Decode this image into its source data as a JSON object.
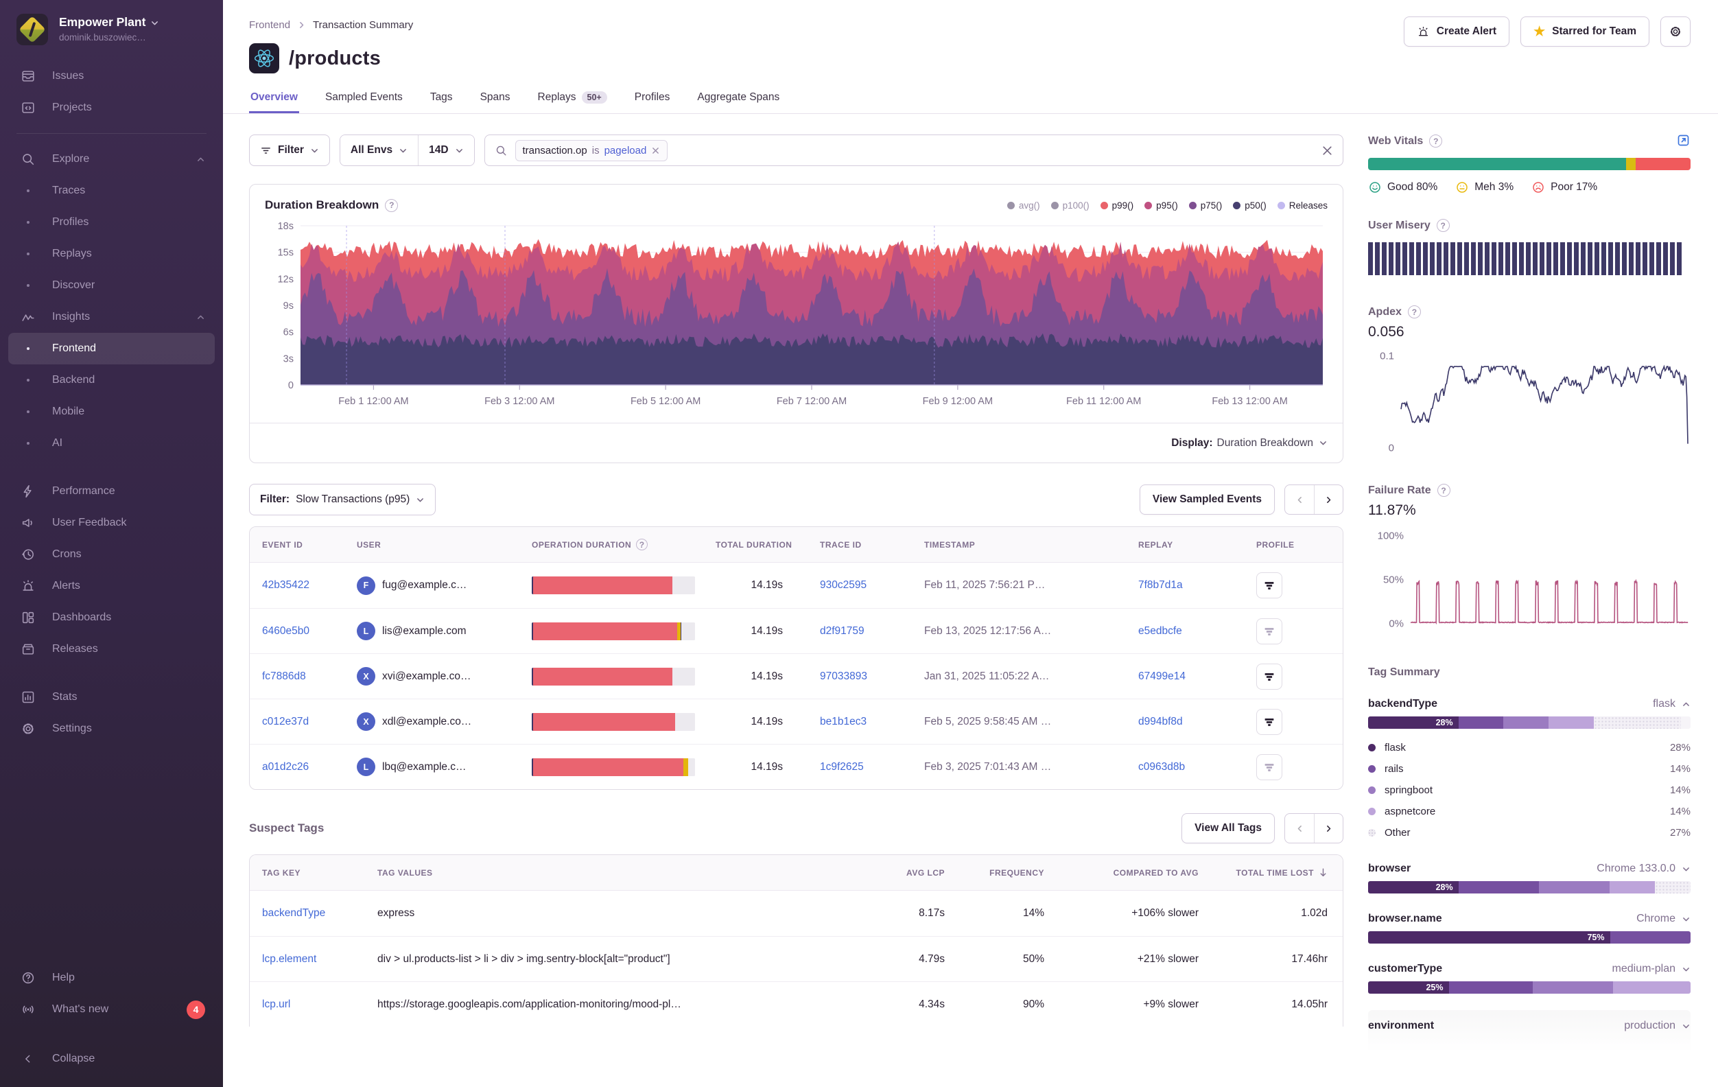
{
  "sidebar": {
    "org_name": "Empower Plant",
    "org_user": "dominik.buszowiec…",
    "sections": [
      [
        {
          "icon": "issues",
          "label": "Issues"
        },
        {
          "icon": "projects",
          "label": "Projects"
        }
      ],
      [
        {
          "icon": "search",
          "label": "Explore",
          "chevron": "up"
        },
        {
          "bullet": true,
          "label": "Traces"
        },
        {
          "bullet": true,
          "label": "Profiles"
        },
        {
          "bullet": true,
          "label": "Replays"
        },
        {
          "bullet": true,
          "label": "Discover"
        },
        {
          "icon": "insights",
          "label": "Insights",
          "chevron": "up"
        },
        {
          "bullet": true,
          "label": "Frontend",
          "active": true
        },
        {
          "bullet": true,
          "label": "Backend"
        },
        {
          "bullet": true,
          "label": "Mobile"
        },
        {
          "bullet": true,
          "label": "AI"
        }
      ],
      [
        {
          "icon": "performance",
          "label": "Performance"
        },
        {
          "icon": "feedback",
          "label": "User Feedback"
        },
        {
          "icon": "crons",
          "label": "Crons"
        },
        {
          "icon": "alerts",
          "label": "Alerts"
        },
        {
          "icon": "dashboards",
          "label": "Dashboards"
        },
        {
          "icon": "releases",
          "label": "Releases"
        }
      ],
      [
        {
          "icon": "stats",
          "label": "Stats"
        },
        {
          "icon": "settings",
          "label": "Settings"
        }
      ]
    ],
    "footer_items": [
      {
        "icon": "help",
        "label": "Help"
      },
      {
        "icon": "broadcast",
        "label": "What's new",
        "badge": "4"
      }
    ],
    "collapse_label": "Collapse"
  },
  "header": {
    "breadcrumb": [
      "Frontend",
      "Transaction Summary"
    ],
    "title": "/products",
    "actions": {
      "create_alert": "Create Alert",
      "starred": "Starred for Team"
    }
  },
  "tabs": [
    {
      "label": "Overview",
      "active": true
    },
    {
      "label": "Sampled Events"
    },
    {
      "label": "Tags"
    },
    {
      "label": "Spans"
    },
    {
      "label": "Replays",
      "badge": "50+"
    },
    {
      "label": "Profiles"
    },
    {
      "label": "Aggregate Spans"
    }
  ],
  "filter_bar": {
    "filter_label": "Filter",
    "env_label": "All Envs",
    "period_label": "14D",
    "search_token": {
      "key": "transaction.op",
      "op": "is",
      "value": "pageload"
    }
  },
  "duration_panel": {
    "title": "Duration Breakdown",
    "display_label": "Display:",
    "display_value": "Duration Breakdown"
  },
  "chart_data": [
    {
      "id": "duration_breakdown",
      "type": "area",
      "title": "Duration Breakdown",
      "ylim": [
        0,
        18
      ],
      "y_ticks": [
        {
          "v": 18,
          "label": "18s"
        },
        {
          "v": 15,
          "label": "15s"
        },
        {
          "v": 12,
          "label": "12s"
        },
        {
          "v": 9,
          "label": "9s"
        },
        {
          "v": 6,
          "label": "6s"
        },
        {
          "v": 3,
          "label": "3s"
        },
        {
          "v": 0,
          "label": "0"
        }
      ],
      "x_ticks": [
        {
          "day": 1,
          "label": "Feb 1 12:00 AM"
        },
        {
          "day": 3,
          "label": "Feb 3 12:00 AM"
        },
        {
          "day": 5,
          "label": "Feb 5 12:00 AM"
        },
        {
          "day": 7,
          "label": "Feb 7 12:00 AM"
        },
        {
          "day": 9,
          "label": "Feb 9 12:00 AM"
        },
        {
          "day": 11,
          "label": "Feb 11 12:00 AM"
        },
        {
          "day": 13,
          "label": "Feb 13 12:00 AM"
        }
      ],
      "x_days": 14,
      "legend": [
        {
          "label": "avg()",
          "color": "#9b93a7",
          "active": false
        },
        {
          "label": "p100()",
          "color": "#9b93a7",
          "active": false
        },
        {
          "label": "p99()",
          "color": "#e9636a",
          "active": true
        },
        {
          "label": "p95()",
          "color": "#c05181",
          "active": true
        },
        {
          "label": "p75()",
          "color": "#7e4f91",
          "active": true
        },
        {
          "label": "p50()",
          "color": "#474070",
          "active": true
        },
        {
          "label": "Releases",
          "color": "#c2b9f0",
          "active": true
        }
      ],
      "series": [
        {
          "name": "p99()",
          "color": "#e9636a",
          "base": 15.1,
          "noise": 0.85,
          "spike": 0.6,
          "seed": 11
        },
        {
          "name": "p95()",
          "color": "#c05181",
          "base": 12.6,
          "noise": 0.95,
          "spike": 2.8,
          "seed": 22
        },
        {
          "name": "p75()",
          "color": "#7e4f91",
          "base": 7.6,
          "noise": 1.05,
          "spike": 4.7,
          "seed": 33
        },
        {
          "name": "p50()",
          "color": "#474070",
          "base": 4.85,
          "noise": 0.65,
          "spike": 0.4,
          "seed": 44
        }
      ],
      "cycles": 14,
      "releases_x": [
        0.045,
        0.2,
        0.62
      ]
    },
    {
      "id": "apdex",
      "type": "line",
      "label": "Apdex",
      "value": "0.056",
      "ylim": [
        0,
        0.1
      ],
      "y_ticks": [
        {
          "v": 0.1,
          "label": "0.1"
        },
        {
          "v": 0,
          "label": "0"
        }
      ],
      "color": "#3a3768",
      "base": 0.048,
      "noise": 0.013,
      "seed": 7
    },
    {
      "id": "failure_rate",
      "type": "line",
      "label": "Failure Rate",
      "value": "11.87%",
      "ylim": [
        0,
        1
      ],
      "y_ticks": [
        {
          "v": 1,
          "label": "100%"
        },
        {
          "v": 0.5,
          "label": "50%"
        },
        {
          "v": 0,
          "label": "0%"
        }
      ],
      "color": "#b5537f",
      "pulses": 14,
      "pulse_height": 0.46,
      "seed": 19
    },
    {
      "id": "user_misery",
      "type": "barcode",
      "label": "User Misery",
      "bars": 46,
      "color": "#3e3966"
    },
    {
      "id": "web_vitals",
      "type": "stacked_bar",
      "label": "Web Vitals",
      "segments": [
        {
          "label": "Good",
          "pct": 80,
          "color": "#2ba185"
        },
        {
          "label": "Meh",
          "pct": 3,
          "color": "#d8bc13"
        },
        {
          "label": "Poor",
          "pct": 17,
          "color": "#f05a5c"
        }
      ]
    }
  ],
  "events_section": {
    "filter_label": "Filter:",
    "filter_value": "Slow Transactions (p95)",
    "view_button": "View Sampled Events",
    "columns": [
      "Event ID",
      "User",
      "Operation Duration",
      "Total Duration",
      "Trace ID",
      "Timestamp",
      "Replay",
      "Profile"
    ],
    "rows": [
      {
        "event_id": "42b35422",
        "user_initial": "F",
        "user": "fug@example.c…",
        "op_segments": [
          {
            "c": "#3e3466",
            "w": 1
          },
          {
            "c": "#ea6470",
            "w": 85
          },
          {
            "c": "#eceaef",
            "w": 14
          }
        ],
        "total": "14.19s",
        "trace": "930c2595",
        "timestamp": "Feb 11, 2025 7:56:21 P…",
        "replay": "7f8b7d1a",
        "profile_active": true
      },
      {
        "event_id": "6460e5b0",
        "user_initial": "L",
        "user": "lis@example.com",
        "op_segments": [
          {
            "c": "#3e3466",
            "w": 1
          },
          {
            "c": "#ea6470",
            "w": 88
          },
          {
            "c": "#e3b50c",
            "w": 2
          },
          {
            "c": "#3e3466",
            "w": 0.8
          },
          {
            "c": "#eceaef",
            "w": 8.2
          }
        ],
        "total": "14.19s",
        "trace": "d2f91759",
        "timestamp": "Feb 13, 2025 12:17:56 A…",
        "replay": "e5edbcfe",
        "profile_active": false
      },
      {
        "event_id": "fc7886d8",
        "user_initial": "X",
        "user": "xvi@example.co…",
        "op_segments": [
          {
            "c": "#3e3466",
            "w": 1
          },
          {
            "c": "#ea6470",
            "w": 85
          },
          {
            "c": "#eceaef",
            "w": 14
          }
        ],
        "total": "14.19s",
        "trace": "97033893",
        "timestamp": "Jan 31, 2025 11:05:22 A…",
        "replay": "67499e14",
        "profile_active": true
      },
      {
        "event_id": "c012e37d",
        "user_initial": "X",
        "user": "xdl@example.co…",
        "op_segments": [
          {
            "c": "#3e3466",
            "w": 1
          },
          {
            "c": "#ea6470",
            "w": 87
          },
          {
            "c": "#eceaef",
            "w": 12
          }
        ],
        "total": "14.19s",
        "trace": "be1b1ec3",
        "timestamp": "Feb 5, 2025 9:58:45 AM …",
        "replay": "d994bf8d",
        "profile_active": true
      },
      {
        "event_id": "a01d2c26",
        "user_initial": "L",
        "user": "lbq@example.c…",
        "op_segments": [
          {
            "c": "#3e3466",
            "w": 1
          },
          {
            "c": "#ea6470",
            "w": 92
          },
          {
            "c": "#e3b50c",
            "w": 3
          },
          {
            "c": "#eceaef",
            "w": 4
          }
        ],
        "total": "14.19s",
        "trace": "1c9f2625",
        "timestamp": "Feb 3, 2025 7:01:43 AM …",
        "replay": "c0963d8b",
        "profile_active": false
      }
    ]
  },
  "suspect_tags": {
    "title": "Suspect Tags",
    "view_button": "View All Tags",
    "columns": [
      "Tag Key",
      "Tag Values",
      "Avg LCP",
      "Frequency",
      "Compared To Avg",
      "Total Time Lost"
    ],
    "sorted_col": "Total Time Lost",
    "rows": [
      {
        "key": "backendType",
        "values": "express",
        "avg_lcp": "8.17s",
        "freq": "14%",
        "compared": "+106% slower",
        "lost": "1.02d"
      },
      {
        "key": "lcp.element",
        "values": "div > ul.products-list > li > div > img.sentry-block[alt=\"product\"]",
        "avg_lcp": "4.79s",
        "freq": "50%",
        "compared": "+21% slower",
        "lost": "17.46hr"
      },
      {
        "key": "lcp.url",
        "values": "https://storage.googleapis.com/application-monitoring/mood-pl…",
        "avg_lcp": "4.34s",
        "freq": "90%",
        "compared": "+9% slower",
        "lost": "14.05hr"
      }
    ]
  },
  "right_panel": {
    "web_vitals_title": "Web Vitals",
    "web_vitals_legend": [
      {
        "face": "good",
        "label": "Good 80%",
        "color": "#2ba185"
      },
      {
        "face": "meh",
        "label": "Meh 3%",
        "color": "#e9b90d"
      },
      {
        "face": "poor",
        "label": "Poor 17%",
        "color": "#f05a5c"
      }
    ],
    "user_misery_title": "User Misery",
    "apdex_title": "Apdex",
    "apdex_value": "0.056",
    "failure_title": "Failure Rate",
    "failure_value": "11.87%",
    "tag_summary_title": "Tag Summary",
    "tag_sections": [
      {
        "key": "backendType",
        "selected": "flask",
        "expanded": true,
        "bar": [
          {
            "pct": 28,
            "color": "#4d2a67",
            "label": "28%"
          },
          {
            "pct": 14,
            "color": "#7650a0"
          },
          {
            "pct": 14,
            "color": "#9b7bc1"
          },
          {
            "pct": 14,
            "color": "#bda4da"
          },
          {
            "pct": 27,
            "other": true
          }
        ],
        "legend": [
          {
            "label": "flask",
            "pct": "28%",
            "color": "#4d2a67"
          },
          {
            "label": "rails",
            "pct": "14%",
            "color": "#7650a0"
          },
          {
            "label": "springboot",
            "pct": "14%",
            "color": "#9b7bc1"
          },
          {
            "label": "aspnetcore",
            "pct": "14%",
            "color": "#bda4da"
          },
          {
            "label": "Other",
            "pct": "27%",
            "other": true
          }
        ]
      },
      {
        "key": "browser",
        "selected": "Chrome 133.0.0",
        "expanded": false,
        "bar": [
          {
            "pct": 28,
            "color": "#4d2a67",
            "label": "28%"
          },
          {
            "pct": 25,
            "color": "#7650a0"
          },
          {
            "pct": 22,
            "color": "#9b7bc1"
          },
          {
            "pct": 14,
            "color": "#bda4da"
          },
          {
            "pct": 11,
            "other": true
          }
        ]
      },
      {
        "key": "browser.name",
        "selected": "Chrome",
        "expanded": false,
        "bar": [
          {
            "pct": 75,
            "color": "#4d2a67",
            "label": "75%"
          },
          {
            "pct": 25,
            "color": "#7650a0"
          }
        ]
      },
      {
        "key": "customerType",
        "selected": "medium-plan",
        "expanded": false,
        "bar": [
          {
            "pct": 25,
            "color": "#4d2a67",
            "label": "25%"
          },
          {
            "pct": 26,
            "color": "#7650a0"
          },
          {
            "pct": 25,
            "color": "#9b7bc1"
          },
          {
            "pct": 24,
            "color": "#bda4da"
          }
        ]
      },
      {
        "key": "environment",
        "selected": "production",
        "expanded": false,
        "bar": []
      }
    ]
  }
}
